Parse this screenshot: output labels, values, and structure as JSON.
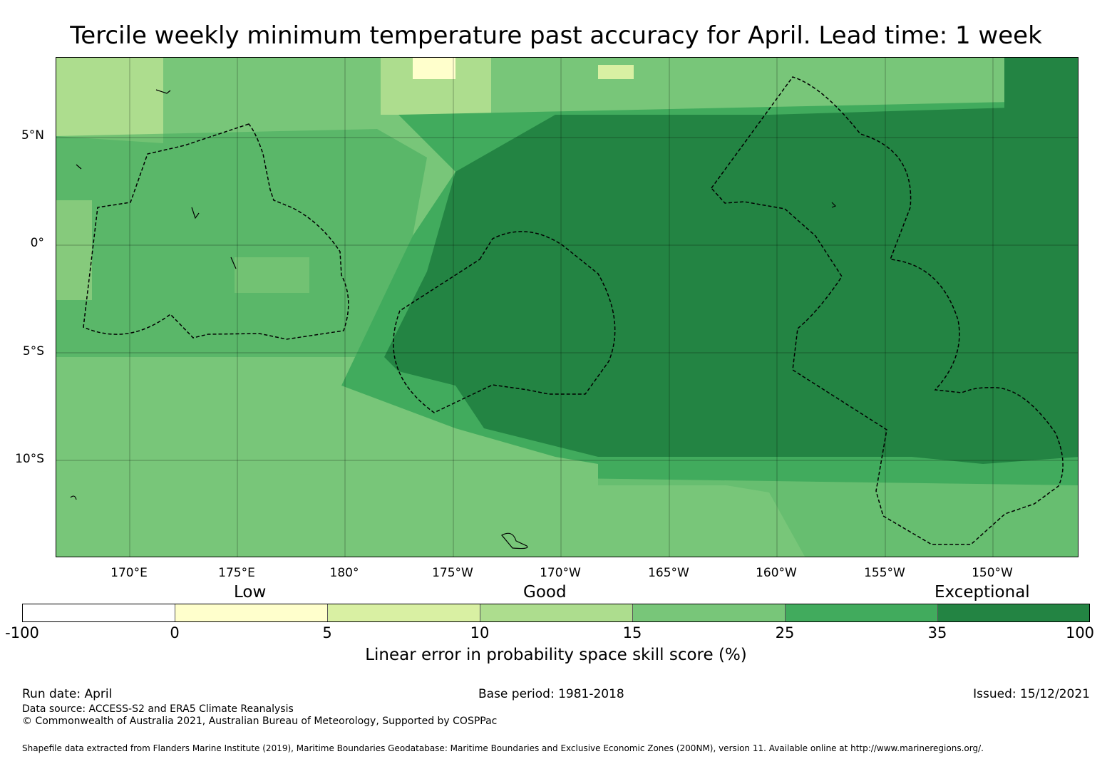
{
  "title": "Tercile weekly minimum temperature past accuracy for April. Lead time: 1 week",
  "map": {
    "lat_labels": [
      "5°N",
      "0°",
      "5°S",
      "10°S"
    ],
    "lon_labels": [
      "170°E",
      "175°E",
      "180°",
      "175°W",
      "170°W",
      "165°W",
      "160°W",
      "155°W",
      "150°W"
    ]
  },
  "legend": {
    "categories": [
      "Low",
      "Good",
      "Exceptional"
    ],
    "ticks": [
      "-100",
      "0",
      "5",
      "10",
      "15",
      "25",
      "35",
      "100"
    ],
    "colors": [
      "#ffffff",
      "#ffffcc",
      "#d9f0a3",
      "#addd8e",
      "#78c679",
      "#41ab5d",
      "#238443"
    ],
    "label": "Linear error in probability space skill score (%)"
  },
  "footer": {
    "run_date": "Run date: April",
    "base_period": "Base period: 1981-2018",
    "issued": "Issued: 15/12/2021",
    "data_source": "Data source: ACCESS-S2 and ERA5 Climate Reanalysis",
    "copyright": "© Commonwealth of Australia 2021, Australian Bureau of Meteorology, Supported by COSPPac",
    "shapefile": "Shapefile data extracted from Flanders Marine Institute (2019), Maritime Boundaries Geodatabase: Maritime Boundaries and Exclusive Economic Zones (200NM), version 11. Available online at http://www.marineregions.org/."
  }
}
